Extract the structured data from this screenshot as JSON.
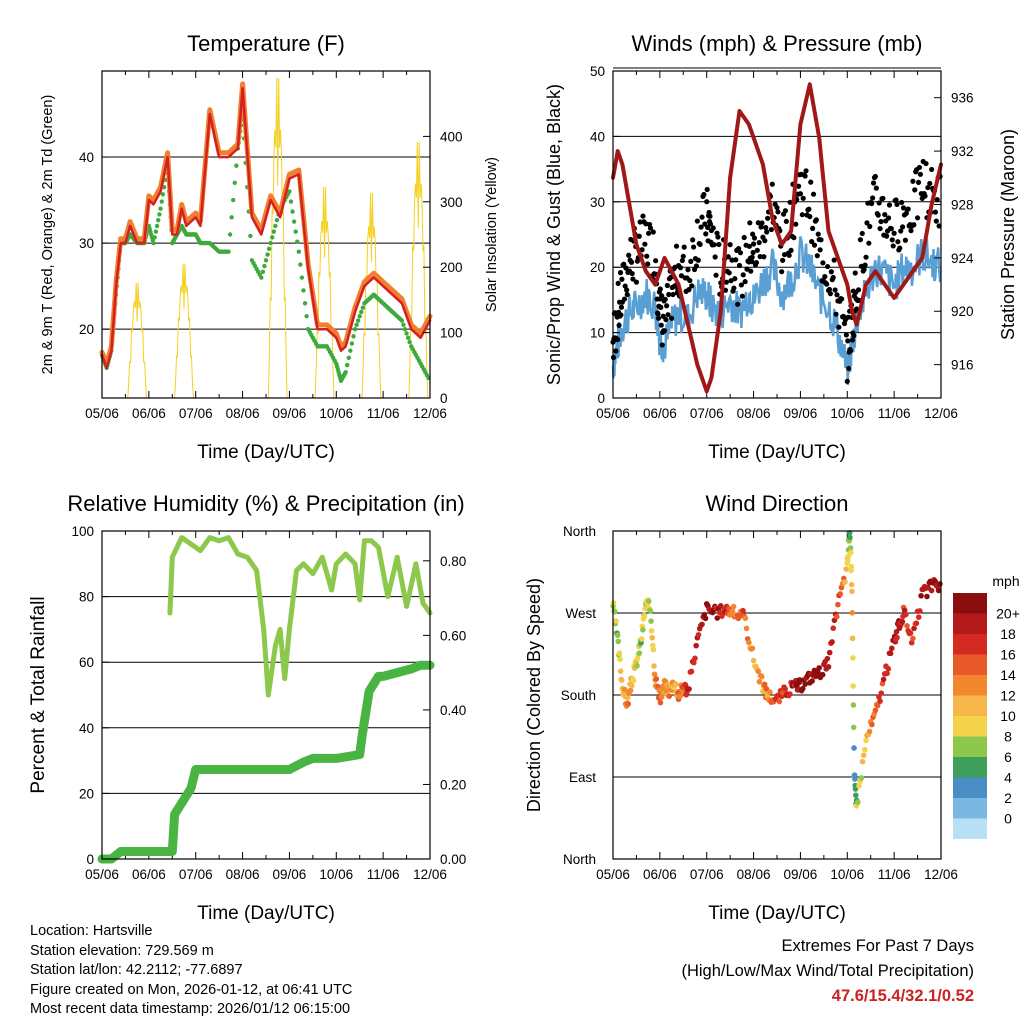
{
  "time_ticks": [
    "05/06",
    "06/06",
    "07/06",
    "08/06",
    "09/06",
    "10/06",
    "11/06",
    "12/06"
  ],
  "chart_data": [
    {
      "type": "line",
      "title": "Temperature (F)",
      "xlabel": "Time (Day/UTC)",
      "ylabel": "2m & 9m T (Red, Orange) & 2m Td (Green)",
      "y2label": "Solar Insolation (Yellow)",
      "ylim": [
        12,
        50
      ],
      "y2lim": [
        0,
        500
      ],
      "yticks": [
        20,
        30,
        40
      ],
      "y2ticks": [
        0,
        100,
        200,
        300,
        400
      ],
      "x": [
        0,
        0.1,
        0.2,
        0.3,
        0.4,
        0.5,
        0.6,
        0.75,
        0.9,
        1.0,
        1.1,
        1.25,
        1.4,
        1.5,
        1.6,
        1.7,
        1.8,
        1.9,
        2.0,
        2.1,
        2.3,
        2.5,
        2.7,
        2.9,
        3.0,
        3.2,
        3.4,
        3.6,
        3.8,
        4.0,
        4.2,
        4.4,
        4.6,
        4.8,
        5.0,
        5.1,
        5.2,
        5.4,
        5.6,
        5.8,
        6.0,
        6.2,
        6.4,
        6.6,
        6.8,
        7.0
      ],
      "series": [
        {
          "name": "2m T",
          "color": "#d42020",
          "values": [
            17,
            15.5,
            17.5,
            25,
            30,
            30,
            32,
            30,
            30,
            35,
            34.5,
            36,
            40,
            31,
            31,
            34,
            32,
            32.5,
            33,
            32,
            45,
            40,
            40,
            41,
            48,
            33,
            31,
            35,
            33,
            37.5,
            38,
            27,
            20,
            20,
            19,
            17.5,
            18,
            22,
            25,
            26,
            25,
            24,
            23,
            20,
            19,
            21
          ]
        },
        {
          "name": "9m T",
          "color": "#f08030",
          "values": [
            17.3,
            16,
            18,
            25.5,
            30.5,
            30.5,
            32.5,
            30.5,
            30.5,
            35.5,
            35,
            36.5,
            40.5,
            31.5,
            31.5,
            34.5,
            32.5,
            33,
            33.5,
            32.5,
            45.5,
            40.5,
            40.5,
            41.5,
            48.5,
            33.5,
            31.5,
            35.5,
            33.5,
            38,
            38.5,
            27.5,
            20.5,
            20.5,
            19.5,
            18,
            18.5,
            22.5,
            25.5,
            26.5,
            25.5,
            24.5,
            23.5,
            20.5,
            19.5,
            21.5
          ]
        },
        {
          "name": "2m Td",
          "color": "#3caa3c",
          "values": [
            17,
            15.5,
            17.5,
            24,
            30,
            30,
            31,
            30,
            30,
            32,
            30,
            34,
            39,
            30,
            31,
            32,
            31,
            31,
            31,
            30,
            30,
            29,
            29,
            41,
            45,
            28,
            26,
            30,
            34,
            36,
            29,
            20,
            18,
            18,
            16,
            14,
            15,
            20,
            23,
            24,
            23,
            22,
            21,
            18,
            16,
            14
          ]
        }
      ],
      "insolation": {
        "name": "Solar Insolation",
        "color": "#f5d020",
        "days": [
          0,
          1,
          2,
          3,
          4,
          5,
          6
        ],
        "peaks": [
          180,
          210,
          0,
          500,
          330,
          320,
          400
        ]
      }
    },
    {
      "type": "line",
      "title": "Winds (mph) & Pressure (mb)",
      "xlabel": "Time (Day/UTC)",
      "ylabel": "Sonic/Prop Wind & Gust (Blue, Black)",
      "y2label": "Station Pressure (Maroon)",
      "ylim": [
        0,
        50
      ],
      "y2lim": [
        913.5,
        938
      ],
      "yticks": [
        0,
        10,
        20,
        30,
        40,
        50
      ],
      "y2ticks": [
        916,
        920,
        924,
        928,
        932,
        936
      ],
      "x": [
        0,
        0.1,
        0.2,
        0.35,
        0.5,
        0.7,
        0.9,
        1.0,
        1.1,
        1.25,
        1.4,
        1.6,
        1.8,
        2.0,
        2.1,
        2.3,
        2.5,
        2.7,
        2.9,
        3.0,
        3.2,
        3.4,
        3.6,
        3.8,
        4.0,
        4.2,
        4.4,
        4.6,
        4.8,
        5.0,
        5.1,
        5.2,
        5.4,
        5.6,
        5.8,
        6.0,
        6.2,
        6.4,
        6.6,
        6.8,
        7.0
      ],
      "series": [
        {
          "name": "Wind",
          "color": "#5a9fd4",
          "values": [
            5,
            8,
            11,
            13,
            14,
            16,
            14,
            9,
            8,
            11,
            13,
            12,
            16,
            16,
            14,
            13,
            15,
            13,
            16,
            15,
            18,
            20,
            16,
            18,
            22,
            20,
            16,
            14,
            10,
            4,
            8,
            12,
            16,
            20,
            19,
            17,
            20,
            20,
            22,
            21,
            20
          ]
        },
        {
          "name": "Gust",
          "color": "#000000",
          "values": [
            8,
            13,
            16,
            21,
            22,
            24,
            22,
            13,
            11,
            16,
            20,
            19,
            25,
            28,
            25,
            19,
            22,
            18,
            23,
            22,
            25,
            30,
            23,
            27,
            33,
            30,
            22,
            20,
            15,
            7,
            12,
            17,
            25,
            30,
            28,
            26,
            28,
            29,
            33,
            31,
            30
          ]
        },
        {
          "name": "Pressure",
          "color": "#a01818",
          "axis": "y2",
          "values": [
            930,
            932,
            931,
            928,
            925,
            923,
            922,
            923,
            924,
            923,
            922,
            919,
            916,
            914,
            915,
            920,
            930,
            935,
            934,
            933,
            931,
            927,
            925,
            926,
            934,
            937,
            933,
            926,
            924,
            922,
            920,
            919,
            922,
            923,
            922,
            921,
            922,
            923,
            924,
            928,
            931
          ]
        }
      ]
    },
    {
      "type": "line",
      "title": "Relative Humidity (%) & Precipitation (in)",
      "xlabel": "Time (Day/UTC)",
      "ylabel": "Percent & Total Rainfall",
      "ylim": [
        0,
        100
      ],
      "y2lim": [
        0,
        0.88
      ],
      "yticks": [
        0,
        20,
        40,
        60,
        80,
        100
      ],
      "y2ticks": [
        0.0,
        0.2,
        0.4,
        0.6,
        0.8
      ],
      "series": [
        {
          "name": "Relative Humidity",
          "color": "#8cc84b",
          "x": [
            1.45,
            1.5,
            1.7,
            1.9,
            2.1,
            2.3,
            2.5,
            2.7,
            2.9,
            3.1,
            3.3,
            3.45,
            3.55,
            3.7,
            3.8,
            3.9,
            4.0,
            4.15,
            4.3,
            4.5,
            4.7,
            4.9,
            5.0,
            5.2,
            5.4,
            5.5,
            5.6,
            5.75,
            5.9,
            6.1,
            6.3,
            6.5,
            6.7,
            6.85,
            7.0
          ],
          "values": [
            75,
            92,
            98,
            96,
            94,
            98,
            97,
            98,
            93,
            92,
            88,
            70,
            50,
            65,
            70,
            55,
            70,
            88,
            90,
            87,
            92,
            82,
            90,
            93,
            90,
            79,
            97,
            97,
            95,
            80,
            92,
            77,
            90,
            78,
            75
          ]
        },
        {
          "name": "Total Precipitation",
          "color": "#4ab443",
          "axis": "y2",
          "x": [
            0,
            0.2,
            0.4,
            0.8,
            1.2,
            1.5,
            1.55,
            1.7,
            1.9,
            2.0,
            2.1,
            2.5,
            3.0,
            3.5,
            4.0,
            4.3,
            4.5,
            5.0,
            5.5,
            5.55,
            5.7,
            5.9,
            6.0,
            6.3,
            6.6,
            6.8,
            7.0
          ],
          "values": [
            0,
            0.0,
            0.02,
            0.02,
            0.02,
            0.02,
            0.12,
            0.15,
            0.19,
            0.24,
            0.24,
            0.24,
            0.24,
            0.24,
            0.24,
            0.26,
            0.27,
            0.27,
            0.28,
            0.33,
            0.45,
            0.49,
            0.49,
            0.5,
            0.51,
            0.52,
            0.52
          ]
        }
      ]
    },
    {
      "type": "scatter",
      "title": "Wind Direction",
      "xlabel": "Time (Day/UTC)",
      "ylabel": "Direction (Colored By Speed)",
      "ylim": [
        0,
        360
      ],
      "yticks": [
        "North",
        "East",
        "South",
        "West",
        "North"
      ],
      "colorbar": {
        "title": "mph",
        "labels": [
          "20+",
          "18",
          "16",
          "14",
          "12",
          "10",
          "8",
          "6",
          "4",
          "2",
          "0"
        ],
        "colors": [
          "#8b0e0e",
          "#b51a1a",
          "#d42a22",
          "#e95a2a",
          "#f2872e",
          "#f6b64a",
          "#f2d34a",
          "#8cc84b",
          "#3e9e5c",
          "#4a8ec6",
          "#7ab8e2",
          "#b9dff5"
        ]
      },
      "x": [
        0,
        0.1,
        0.2,
        0.3,
        0.4,
        0.5,
        0.6,
        0.7,
        0.8,
        0.9,
        1.0,
        1.1,
        1.2,
        1.3,
        1.4,
        1.5,
        1.6,
        1.8,
        2.0,
        2.2,
        2.4,
        2.6,
        2.8,
        3.0,
        3.2,
        3.3,
        3.5,
        3.7,
        3.9,
        4.0,
        4.2,
        4.4,
        4.6,
        4.8,
        5.0,
        5.05,
        5.1,
        5.15,
        5.2,
        5.4,
        5.6,
        5.8,
        6.0,
        6.1,
        6.2,
        6.4,
        6.6,
        6.8,
        7.0
      ],
      "values": [
        280,
        240,
        190,
        170,
        195,
        215,
        240,
        280,
        275,
        200,
        175,
        190,
        185,
        195,
        180,
        190,
        185,
        240,
        275,
        270,
        275,
        270,
        265,
        220,
        190,
        180,
        175,
        185,
        190,
        190,
        200,
        205,
        215,
        280,
        320,
        360,
        300,
        90,
        60,
        130,
        160,
        200,
        240,
        255,
        270,
        240,
        290,
        300,
        300
      ],
      "speeds": [
        8,
        6,
        10,
        12,
        10,
        8,
        6,
        8,
        8,
        12,
        14,
        10,
        12,
        10,
        12,
        14,
        16,
        18,
        20,
        18,
        16,
        12,
        14,
        10,
        12,
        12,
        14,
        16,
        18,
        18,
        20,
        20,
        18,
        16,
        10,
        4,
        12,
        2,
        6,
        10,
        14,
        16,
        18,
        18,
        16,
        16,
        18,
        20,
        20
      ]
    }
  ],
  "footer": {
    "location": "Location: Hartsville",
    "elevation": "Station elevation: 729.569 m",
    "latlon": "Station lat/lon: 42.2112; -77.6897",
    "created": "Figure created on Mon, 2026-01-12, at 06:41 UTC",
    "recent": "Most recent data timestamp: 2026/01/12 06:15:00",
    "extremes_title": "Extremes For Past 7 Days",
    "extremes_legend": "(High/Low/Max Wind/Total Precipitation)",
    "extremes_values": "47.6/15.4/32.1/0.52"
  }
}
